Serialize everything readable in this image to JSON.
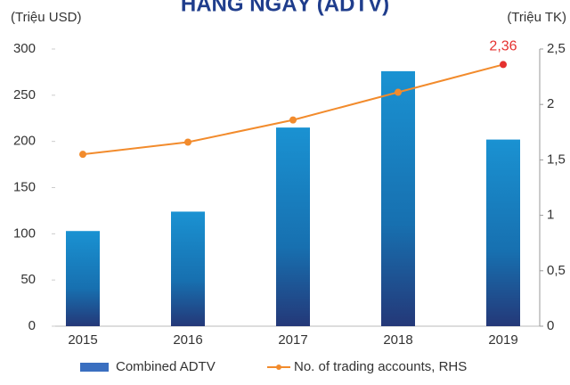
{
  "chart_data": {
    "type": "bar_line",
    "title": "HÀNG NGÀY (ADTV)",
    "y_label": "(Triệu USD)",
    "y2_label": "(Triệu TK)",
    "categories": [
      "2015",
      "2016",
      "2017",
      "2018",
      "2019"
    ],
    "series": [
      {
        "name": "Combined ADTV",
        "type": "bar",
        "color": "#1b7fc0",
        "values": [
          103,
          124,
          215,
          276,
          202
        ]
      },
      {
        "name": "No. of trading accounts, RHS",
        "type": "line",
        "axis": "y2",
        "color": "#f28b2c",
        "highlight_color": "#e5312f",
        "values": [
          1.55,
          1.66,
          1.86,
          2.11,
          2.36
        ],
        "value_labels": [
          null,
          null,
          null,
          null,
          "2,36"
        ]
      }
    ],
    "ylim": [
      0,
      300
    ],
    "yticks": [
      0,
      50,
      100,
      150,
      200,
      250,
      300
    ],
    "y2lim": [
      0,
      2.5
    ],
    "y2ticks": [
      0,
      {
        "value": 0.5,
        "label": "0,5"
      },
      1,
      {
        "value": 1.5,
        "label": "1,5"
      },
      2,
      {
        "value": 2.5,
        "label": "2,5"
      }
    ],
    "grid": false,
    "legend": "bottom"
  }
}
